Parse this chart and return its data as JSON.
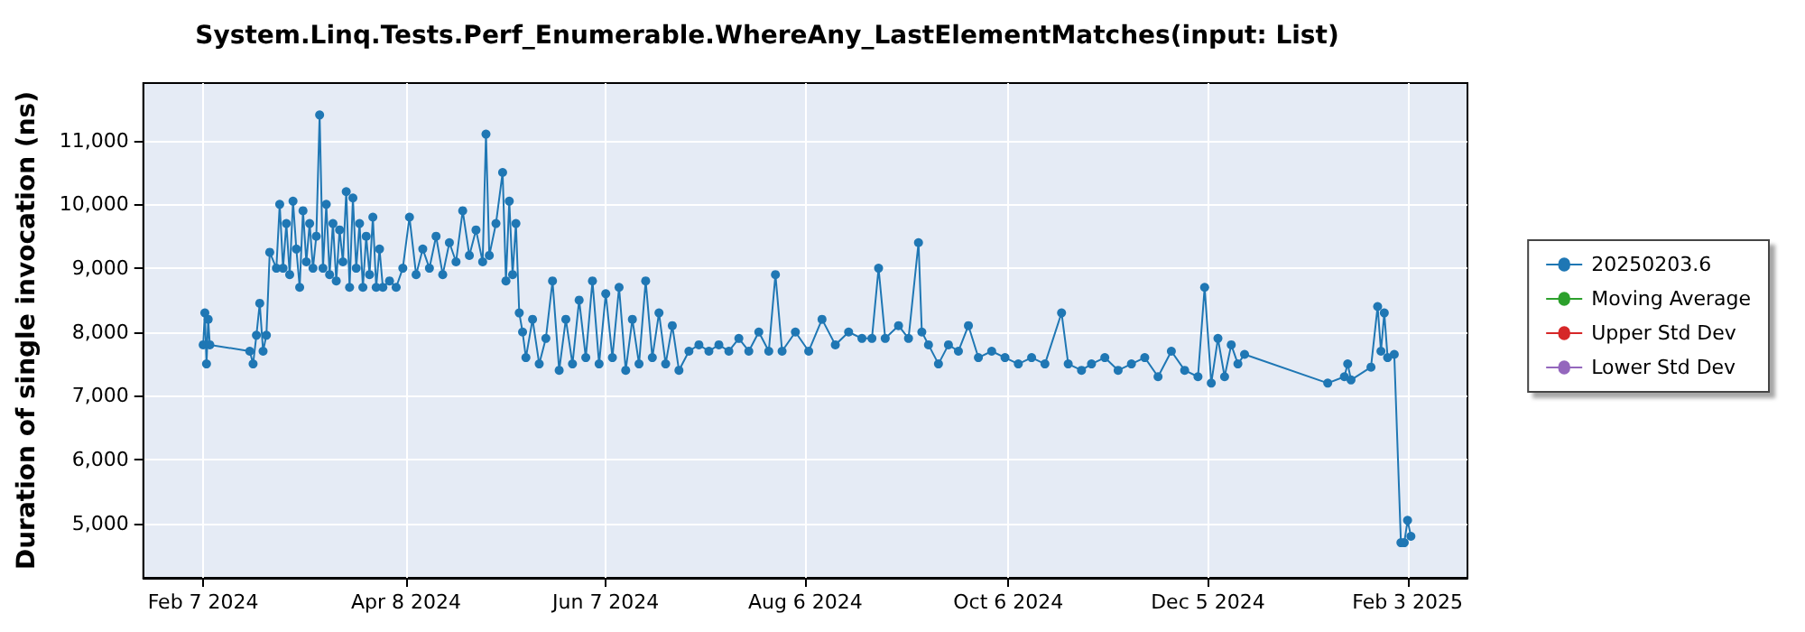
{
  "chart_data": {
    "type": "line",
    "title": "System.Linq.Tests.Perf_Enumerable.WhereAny_LastElementMatches(input: List)",
    "ylabel": "Duration of single invocation (ns)",
    "xlim": [
      "2024-01-20",
      "2025-02-21"
    ],
    "xticks": [
      {
        "value": "2024-02-07",
        "label": "Feb 7 2024"
      },
      {
        "value": "2024-04-08",
        "label": "Apr 8 2024"
      },
      {
        "value": "2024-06-07",
        "label": "Jun 7 2024"
      },
      {
        "value": "2024-08-06",
        "label": "Aug 6 2024"
      },
      {
        "value": "2024-10-06",
        "label": "Oct 6 2024"
      },
      {
        "value": "2024-12-05",
        "label": "Dec 5 2024"
      },
      {
        "value": "2025-02-03",
        "label": "Feb 3 2025"
      }
    ],
    "ylim": [
      4150,
      11900
    ],
    "yticks": [
      {
        "value": 5000,
        "label": "5,000"
      },
      {
        "value": 6000,
        "label": "6,000"
      },
      {
        "value": 7000,
        "label": "7,000"
      },
      {
        "value": 8000,
        "label": "8,000"
      },
      {
        "value": 9000,
        "label": "9,000"
      },
      {
        "value": 10000,
        "label": "10,000"
      },
      {
        "value": 11000,
        "label": "11,000"
      }
    ],
    "grid": true,
    "legend": "right",
    "marker": "circle",
    "line_style": "solid",
    "series": [
      {
        "name": "20250203.6",
        "color": "#1f77b4",
        "x": [
          "2024-02-07",
          "2024-02-07T12:00",
          "2024-02-08",
          "2024-02-08T12:00",
          "2024-02-09",
          "2024-02-21",
          "2024-02-22",
          "2024-02-23",
          "2024-02-24",
          "2024-02-25",
          "2024-02-26",
          "2024-02-27",
          "2024-02-29",
          "2024-03-01",
          "2024-03-02",
          "2024-03-03",
          "2024-03-04",
          "2024-03-05",
          "2024-03-06",
          "2024-03-07",
          "2024-03-08",
          "2024-03-09",
          "2024-03-10",
          "2024-03-11",
          "2024-03-12",
          "2024-03-13",
          "2024-03-14",
          "2024-03-15",
          "2024-03-16",
          "2024-03-17",
          "2024-03-18",
          "2024-03-19",
          "2024-03-20",
          "2024-03-21",
          "2024-03-22",
          "2024-03-23",
          "2024-03-24",
          "2024-03-25",
          "2024-03-26",
          "2024-03-27",
          "2024-03-28",
          "2024-03-29",
          "2024-03-30",
          "2024-03-31",
          "2024-04-01",
          "2024-04-03",
          "2024-04-05",
          "2024-04-07",
          "2024-04-09",
          "2024-04-11",
          "2024-04-13",
          "2024-04-15",
          "2024-04-17",
          "2024-04-19",
          "2024-04-21",
          "2024-04-23",
          "2024-04-25",
          "2024-04-27",
          "2024-04-29",
          "2024-05-01",
          "2024-05-02",
          "2024-05-03",
          "2024-05-05",
          "2024-05-07",
          "2024-05-08",
          "2024-05-09",
          "2024-05-10",
          "2024-05-11",
          "2024-05-12",
          "2024-05-13",
          "2024-05-14",
          "2024-05-16",
          "2024-05-18",
          "2024-05-20",
          "2024-05-22",
          "2024-05-24",
          "2024-05-26",
          "2024-05-28",
          "2024-05-30",
          "2024-06-01",
          "2024-06-03",
          "2024-06-05",
          "2024-06-07",
          "2024-06-09",
          "2024-06-11",
          "2024-06-13",
          "2024-06-15",
          "2024-06-17",
          "2024-06-19",
          "2024-06-21",
          "2024-06-23",
          "2024-06-25",
          "2024-06-27",
          "2024-06-29",
          "2024-07-02",
          "2024-07-05",
          "2024-07-08",
          "2024-07-11",
          "2024-07-14",
          "2024-07-17",
          "2024-07-20",
          "2024-07-23",
          "2024-07-26",
          "2024-07-28",
          "2024-07-30",
          "2024-08-03",
          "2024-08-07",
          "2024-08-11",
          "2024-08-15",
          "2024-08-19",
          "2024-08-23",
          "2024-08-26",
          "2024-08-28",
          "2024-08-30",
          "2024-09-03",
          "2024-09-06",
          "2024-09-09",
          "2024-09-10",
          "2024-09-12",
          "2024-09-15",
          "2024-09-18",
          "2024-09-21",
          "2024-09-24",
          "2024-09-27",
          "2024-10-01",
          "2024-10-05",
          "2024-10-09",
          "2024-10-13",
          "2024-10-17",
          "2024-10-22",
          "2024-10-24",
          "2024-10-28",
          "2024-10-31",
          "2024-11-04",
          "2024-11-08",
          "2024-11-12",
          "2024-11-16",
          "2024-11-20",
          "2024-11-24",
          "2024-11-28",
          "2024-12-02",
          "2024-12-04",
          "2024-12-06",
          "2024-12-08",
          "2024-12-10",
          "2024-12-12",
          "2024-12-14",
          "2024-12-16",
          "2025-01-10",
          "2025-01-15",
          "2025-01-16",
          "2025-01-17",
          "2025-01-23",
          "2025-01-25",
          "2025-01-26",
          "2025-01-27",
          "2025-01-28",
          "2025-01-30",
          "2025-02-01",
          "2025-02-02",
          "2025-02-03",
          "2025-02-04"
        ],
        "values": [
          7800,
          8300,
          7500,
          8200,
          7800,
          7700,
          7500,
          7950,
          8450,
          7700,
          7950,
          9250,
          9000,
          10000,
          9000,
          9700,
          8900,
          10050,
          9300,
          8700,
          9900,
          9100,
          9700,
          9000,
          9500,
          11400,
          9000,
          10000,
          8900,
          9700,
          8800,
          9600,
          9100,
          10200,
          8700,
          10100,
          9000,
          9700,
          8700,
          9500,
          8900,
          9800,
          8700,
          9300,
          8700,
          8800,
          8700,
          9000,
          9800,
          8900,
          9300,
          9000,
          9500,
          8900,
          9400,
          9100,
          9900,
          9200,
          9600,
          9100,
          11100,
          9200,
          9700,
          10500,
          8800,
          10050,
          8900,
          9700,
          8300,
          8000,
          7600,
          8200,
          7500,
          7900,
          8800,
          7400,
          8200,
          7500,
          8500,
          7600,
          8800,
          7500,
          8600,
          7600,
          8700,
          7400,
          8200,
          7500,
          8800,
          7600,
          8300,
          7500,
          8100,
          7400,
          7700,
          7800,
          7700,
          7800,
          7700,
          7900,
          7700,
          8000,
          7700,
          8900,
          7700,
          8000,
          7700,
          8200,
          7800,
          8000,
          7900,
          7900,
          9000,
          7900,
          8100,
          7900,
          9400,
          8000,
          7800,
          7500,
          7800,
          7700,
          8100,
          7600,
          7700,
          7600,
          7500,
          7600,
          7500,
          8300,
          7500,
          7400,
          7500,
          7600,
          7400,
          7500,
          7600,
          7300,
          7700,
          7400,
          7300,
          8700,
          7200,
          7900,
          7300,
          7800,
          7500,
          7650,
          7200,
          7300,
          7500,
          7250,
          7450,
          8400,
          7700,
          8300,
          7600,
          7650,
          4700,
          4700,
          5050,
          4800
        ]
      },
      {
        "name": "Moving Average",
        "color": "#2ca02c"
      },
      {
        "name": "Upper Std Dev",
        "color": "#d62728"
      },
      {
        "name": "Lower Std Dev",
        "color": "#9467bd"
      }
    ]
  }
}
